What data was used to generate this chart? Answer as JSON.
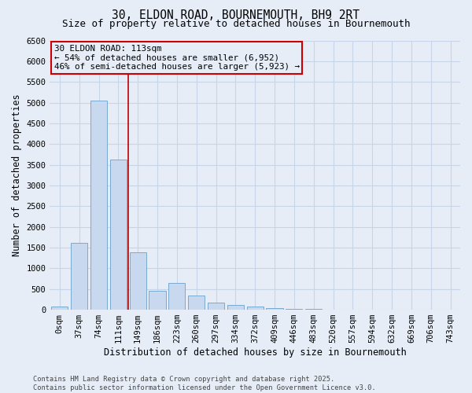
{
  "title_line1": "30, ELDON ROAD, BOURNEMOUTH, BH9 2RT",
  "title_line2": "Size of property relative to detached houses in Bournemouth",
  "xlabel": "Distribution of detached houses by size in Bournemouth",
  "ylabel": "Number of detached properties",
  "categories": [
    "0sqm",
    "37sqm",
    "74sqm",
    "111sqm",
    "149sqm",
    "186sqm",
    "223sqm",
    "260sqm",
    "297sqm",
    "334sqm",
    "372sqm",
    "409sqm",
    "446sqm",
    "483sqm",
    "520sqm",
    "557sqm",
    "594sqm",
    "632sqm",
    "669sqm",
    "706sqm",
    "743sqm"
  ],
  "bar_values": [
    80,
    1620,
    5050,
    3620,
    1380,
    450,
    650,
    350,
    175,
    120,
    70,
    45,
    25,
    15,
    8,
    5,
    3,
    2,
    1,
    1,
    0
  ],
  "bar_color": "#c8d8ee",
  "bar_edge_color": "#7aaad0",
  "grid_color": "#c8d4e8",
  "bg_color": "#e6edf7",
  "vline_color": "#bb0000",
  "annotation_text": "30 ELDON ROAD: 113sqm\n← 54% of detached houses are smaller (6,952)\n46% of semi-detached houses are larger (5,923) →",
  "annotation_box_color": "#cc0000",
  "ylim_max": 6500,
  "ytick_step": 500,
  "footnote": "Contains HM Land Registry data © Crown copyright and database right 2025.\nContains public sector information licensed under the Open Government Licence v3.0.",
  "title_fontsize": 10.5,
  "subtitle_fontsize": 9,
  "axis_label_fontsize": 8.5,
  "tick_fontsize": 7.5,
  "annotation_fontsize": 7.8,
  "footnote_fontsize": 6.2
}
